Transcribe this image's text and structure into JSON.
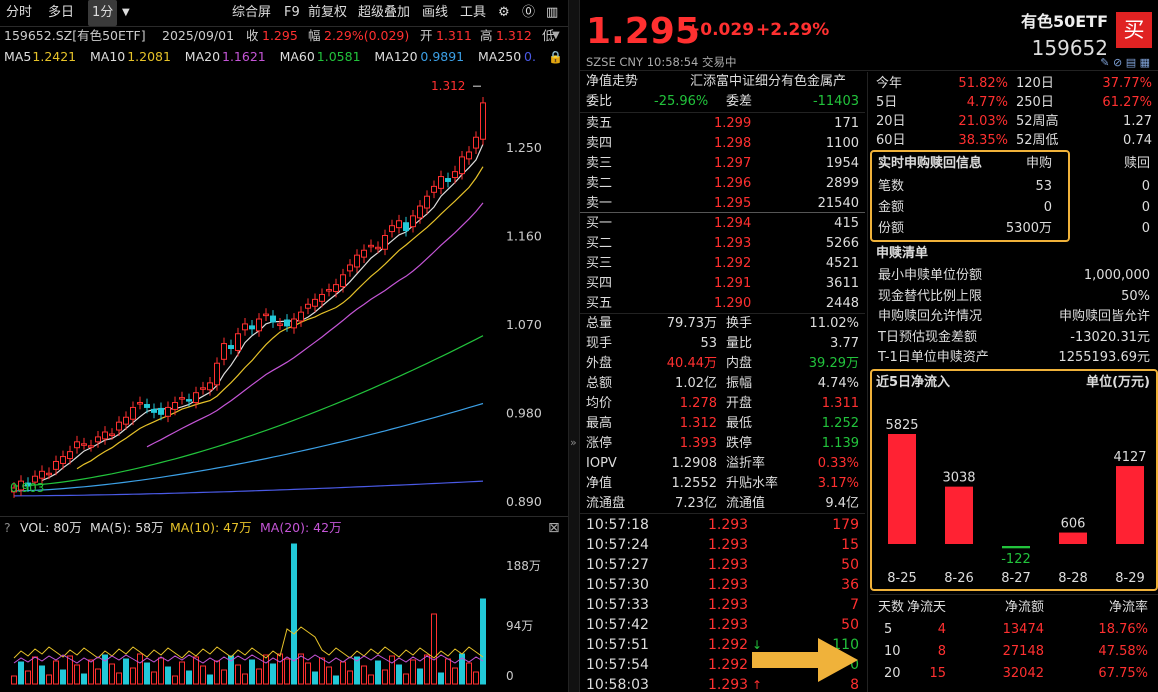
{
  "toolbar": {
    "tabs": [
      "分时",
      "多日",
      "1分"
    ],
    "menu": [
      "综合屏",
      "F9",
      "前复权",
      "超级叠加",
      "画线",
      "工具"
    ]
  },
  "info_line": {
    "code": "159652.SZ[有色50ETF]",
    "date": "2025/09/01",
    "close_label": "收",
    "close": "1.295",
    "range_label": "幅",
    "range": "2.29%(0.029)",
    "open_label": "开",
    "open": "1.311",
    "high_label": "高",
    "high": "1.312",
    "low_label": "低"
  },
  "ma_line": [
    {
      "label": "MA5",
      "value": "1.2421",
      "color": "#e6c229"
    },
    {
      "label": "MA10",
      "value": "1.2081",
      "color": "#e6c229"
    },
    {
      "label": "MA20",
      "value": "1.1621",
      "color": "#c455d6"
    },
    {
      "label": "MA60",
      "value": "1.0581",
      "color": "#22c33c"
    },
    {
      "label": "MA120",
      "value": "0.9891",
      "color": "#3ca0e6"
    },
    {
      "label": "MA250",
      "value": "0.",
      "color": "#4a5ae6"
    }
  ],
  "price_axis": [
    "1.250",
    "1.160",
    "1.070",
    "0.980",
    "0.890"
  ],
  "chart_labels": {
    "high_mark": "1.312",
    "low_mark": "0.903"
  },
  "vol_header": {
    "q": "?",
    "vol": "VOL: 80万",
    "ma5": "MA(5): 58万",
    "ma10": "MA(10): 47万",
    "ma20": "MA(20): 42万"
  },
  "vol_axis": [
    "188万",
    "94万",
    "0"
  ],
  "quote": {
    "price": "1.295",
    "change": "+0.029",
    "pct": "+2.29%",
    "name": "有色50ETF",
    "code": "159652",
    "buy": "买",
    "market": "SZSE  CNY  10:58:54  交易中"
  },
  "nav": {
    "label": "净值走势",
    "fund": "汇添富中证细分有色金属产"
  },
  "ratio": {
    "wb_label": "委比",
    "wb": "-25.96%",
    "wc_label": "委差",
    "wc": "-11403"
  },
  "asks": [
    {
      "l": "卖五",
      "p": "1.299",
      "v": "171"
    },
    {
      "l": "卖四",
      "p": "1.298",
      "v": "1100"
    },
    {
      "l": "卖三",
      "p": "1.297",
      "v": "1954"
    },
    {
      "l": "卖二",
      "p": "1.296",
      "v": "2899"
    },
    {
      "l": "卖一",
      "p": "1.295",
      "v": "21540"
    }
  ],
  "bids": [
    {
      "l": "买一",
      "p": "1.294",
      "v": "415"
    },
    {
      "l": "买二",
      "p": "1.293",
      "v": "5266"
    },
    {
      "l": "买三",
      "p": "1.292",
      "v": "4521"
    },
    {
      "l": "买四",
      "p": "1.291",
      "v": "3611"
    },
    {
      "l": "买五",
      "p": "1.290",
      "v": "2448"
    }
  ],
  "stats": [
    {
      "a": "总量",
      "av": "79.73万",
      "ac": "white",
      "b": "换手",
      "bv": "11.02%",
      "bc": "white"
    },
    {
      "a": "现手",
      "av": "53",
      "ac": "white",
      "b": "量比",
      "bv": "3.77",
      "bc": "white"
    },
    {
      "a": "外盘",
      "av": "40.44万",
      "ac": "red",
      "b": "内盘",
      "bv": "39.29万",
      "bc": "green"
    },
    {
      "a": "总额",
      "av": "1.02亿",
      "ac": "white",
      "b": "振幅",
      "bv": "4.74%",
      "bc": "white"
    },
    {
      "a": "均价",
      "av": "1.278",
      "ac": "red",
      "b": "开盘",
      "bv": "1.311",
      "bc": "red"
    },
    {
      "a": "最高",
      "av": "1.312",
      "ac": "red",
      "b": "最低",
      "bv": "1.252",
      "bc": "green"
    },
    {
      "a": "涨停",
      "av": "1.393",
      "ac": "red",
      "b": "跌停",
      "bv": "1.139",
      "bc": "green"
    },
    {
      "a": "IOPV",
      "av": "1.2908",
      "ac": "white",
      "b": "溢折率",
      "bv": "0.33%",
      "bc": "red"
    },
    {
      "a": "净值",
      "av": "1.2552",
      "ac": "white",
      "b": "升贴水率",
      "bv": "3.17%",
      "bc": "red"
    },
    {
      "a": "流通盘",
      "av": "7.23亿",
      "ac": "white",
      "b": "流通值",
      "bv": "9.4亿",
      "bc": "white"
    }
  ],
  "ticks": [
    {
      "t": "10:57:18",
      "p": "1.293",
      "v": "179",
      "vc": "red"
    },
    {
      "t": "10:57:24",
      "p": "1.293",
      "v": "15",
      "vc": "red"
    },
    {
      "t": "10:57:27",
      "p": "1.293",
      "v": "50",
      "vc": "red"
    },
    {
      "t": "10:57:30",
      "p": "1.293",
      "v": "36",
      "vc": "red"
    },
    {
      "t": "10:57:33",
      "p": "1.293",
      "v": "7",
      "vc": "red"
    },
    {
      "t": "10:57:42",
      "p": "1.293",
      "v": "50",
      "vc": "red"
    },
    {
      "t": "10:57:51",
      "p": "1.292",
      "v": "110",
      "vc": "green",
      "arrow": "↓"
    },
    {
      "t": "10:57:54",
      "p": "1.292",
      "v": "0",
      "vc": "green"
    },
    {
      "t": "10:58:03",
      "p": "1.293",
      "v": "8",
      "vc": "red",
      "arrow": "↑"
    }
  ],
  "perf": [
    {
      "a": "今年",
      "av": "51.82%",
      "b": "120日",
      "bv": "37.77%"
    },
    {
      "a": "5日",
      "av": "4.77%",
      "b": "250日",
      "bv": "61.27%"
    },
    {
      "a": "20日",
      "av": "21.03%",
      "b": "52周高",
      "bv": "1.27"
    },
    {
      "a": "60日",
      "av": "38.35%",
      "b": "52周低",
      "bv": "0.74"
    }
  ],
  "realtime": {
    "title": "实时申购赎回信息",
    "h1": "申购",
    "h2": "赎回",
    "rows": [
      {
        "l": "笔数",
        "a": "53",
        "b": "0"
      },
      {
        "l": "金额",
        "a": "0",
        "b": "0"
      },
      {
        "l": "份额",
        "a": "5300万",
        "b": "0"
      }
    ]
  },
  "list": {
    "title": "申赎清单",
    "rows": [
      {
        "l": "最小申赎单位份额",
        "v": "1,000,000"
      },
      {
        "l": "现金替代比例上限",
        "v": "50%"
      },
      {
        "l": "申购赎回允许情况",
        "v": "申购赎回皆允许"
      },
      {
        "l": "T日预估现金差额",
        "v": "-13020.31元"
      },
      {
        "l": "T-1日单位申赎资产",
        "v": "1255193.69元"
      }
    ]
  },
  "inflow": {
    "title": "近5日净流入",
    "unit": "单位(万元)"
  },
  "summary": {
    "headers": [
      "天数",
      "净流天",
      "净流额",
      "净流率"
    ],
    "rows": [
      {
        "d": "5",
        "n": "4",
        "a": "13474",
        "r": "18.76%"
      },
      {
        "d": "10",
        "n": "8",
        "a": "27148",
        "r": "47.58%"
      },
      {
        "d": "20",
        "n": "15",
        "a": "32042",
        "r": "67.75%"
      }
    ]
  },
  "chart_data": {
    "type": "bar",
    "title": "近5日净流入",
    "ylabel": "单位(万元)",
    "categories": [
      "8-25",
      "8-26",
      "8-27",
      "8-28",
      "8-29"
    ],
    "values": [
      5825,
      3038,
      -122,
      606,
      4127
    ],
    "colors": {
      "positive": "#ff2233",
      "negative": "#22c33c"
    }
  },
  "colors": {
    "up": "#ff3030",
    "down": "#22c33c",
    "highlight": "#f0b23a",
    "bg": "#000000"
  }
}
